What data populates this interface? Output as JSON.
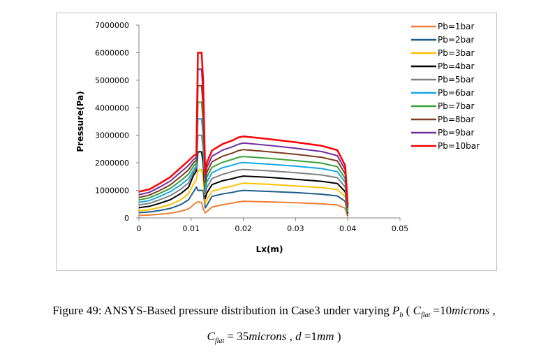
{
  "chart_data": {
    "type": "line",
    "title": "",
    "xlabel": "Lx(m)",
    "ylabel": "Pressure(Pa)",
    "xlim": [
      0,
      0.05
    ],
    "ylim": [
      0,
      7000000
    ],
    "xticks": [
      "0",
      "0.01",
      "0.02",
      "0.03",
      "0.04",
      "0.05"
    ],
    "yticks": [
      "0",
      "1000000",
      "2000000",
      "3000000",
      "4000000",
      "5000000",
      "6000000",
      "7000000"
    ],
    "legend_position": "right",
    "grid": false,
    "x": [
      0,
      0.002,
      0.004,
      0.006,
      0.008,
      0.0095,
      0.0105,
      0.011,
      0.0113,
      0.0117,
      0.012,
      0.0123,
      0.0127,
      0.013,
      0.014,
      0.016,
      0.018,
      0.019,
      0.02,
      0.025,
      0.03,
      0.035,
      0.038,
      0.0395,
      0.04
    ],
    "series": [
      {
        "name": "Pb=1bar",
        "color": "#ed7d31",
        "values": [
          90000,
          105000,
          135000,
          170000,
          240000,
          330000,
          480000,
          560000,
          580000,
          570000,
          560000,
          330000,
          180000,
          230000,
          390000,
          480000,
          540000,
          580000,
          600000,
          580000,
          550000,
          510000,
          470000,
          350000,
          40000
        ]
      },
      {
        "name": "Pb=2bar",
        "color": "#1f5c8b",
        "values": [
          190000,
          215000,
          270000,
          345000,
          480000,
          660000,
          960000,
          1120000,
          1000000,
          1000000,
          1000000,
          1000000,
          360000,
          450000,
          780000,
          870000,
          930000,
          975000,
          1000000,
          960000,
          920000,
          860000,
          800000,
          600000,
          80000
        ]
      },
      {
        "name": "Pb=3bar",
        "color": "#ffc000",
        "values": [
          260000,
          300000,
          380000,
          480000,
          660000,
          880000,
          1240000,
          1400000,
          1700000,
          1750000,
          1750000,
          1400000,
          510000,
          650000,
          960000,
          1080000,
          1160000,
          1220000,
          1260000,
          1220000,
          1160000,
          1100000,
          1030000,
          780000,
          120000
        ]
      },
      {
        "name": "Pb=4bar",
        "color": "#000000",
        "values": [
          370000,
          420000,
          530000,
          660000,
          880000,
          1110000,
          1560000,
          1700000,
          2400000,
          2400000,
          2400000,
          2000000,
          700000,
          900000,
          1210000,
          1350000,
          1430000,
          1480000,
          1520000,
          1470000,
          1400000,
          1330000,
          1250000,
          950000,
          160000
        ]
      },
      {
        "name": "Pb=5bar",
        "color": "#808080",
        "values": [
          470000,
          530000,
          660000,
          810000,
          1040000,
          1270000,
          1660000,
          1820000,
          3000000,
          3000000,
          3000000,
          2500000,
          850000,
          1100000,
          1430000,
          1580000,
          1690000,
          1740000,
          1760000,
          1710000,
          1640000,
          1560000,
          1460000,
          1120000,
          200000
        ]
      },
      {
        "name": "Pb=6bar",
        "color": "#17a7e6",
        "values": [
          560000,
          630000,
          780000,
          950000,
          1200000,
          1430000,
          1740000,
          1900000,
          3600000,
          3600000,
          3600000,
          3000000,
          1000000,
          1300000,
          1640000,
          1820000,
          1920000,
          1980000,
          2010000,
          1950000,
          1880000,
          1790000,
          1680000,
          1290000,
          250000
        ]
      },
      {
        "name": "Pb=7bar",
        "color": "#3aa23a",
        "values": [
          650000,
          730000,
          890000,
          1070000,
          1350000,
          1590000,
          1890000,
          2000000,
          4200000,
          4200000,
          4200000,
          3500000,
          1150000,
          1480000,
          1840000,
          2020000,
          2130000,
          2200000,
          2230000,
          2160000,
          2080000,
          1990000,
          1860000,
          1430000,
          300000
        ]
      },
      {
        "name": "Pb=8bar",
        "color": "#7b3b1e",
        "values": [
          740000,
          830000,
          1000000,
          1200000,
          1500000,
          1750000,
          2010000,
          2100000,
          4800000,
          4800000,
          4800000,
          4000000,
          1300000,
          1650000,
          2040000,
          2240000,
          2360000,
          2440000,
          2480000,
          2400000,
          2310000,
          2200000,
          2070000,
          1600000,
          350000
        ]
      },
      {
        "name": "Pb=9bar",
        "color": "#7030a0",
        "values": [
          840000,
          930000,
          1120000,
          1340000,
          1660000,
          1910000,
          2130000,
          2200000,
          5400000,
          5400000,
          5400000,
          4500000,
          1450000,
          1830000,
          2240000,
          2460000,
          2590000,
          2670000,
          2720000,
          2630000,
          2530000,
          2410000,
          2260000,
          1750000,
          400000
        ]
      },
      {
        "name": "Pb=10bar",
        "color": "#ff0000",
        "values": [
          950000,
          1040000,
          1250000,
          1480000,
          1820000,
          2080000,
          2260000,
          2310000,
          6000000,
          6000000,
          6000000,
          5000000,
          1600000,
          2000000,
          2450000,
          2680000,
          2820000,
          2920000,
          2960000,
          2860000,
          2750000,
          2620000,
          2460000,
          1900000,
          450000
        ]
      }
    ]
  },
  "caption": {
    "line1_text": "Figure 49: ANSYS-Based pressure distribution in Case3 under varying ",
    "line1_var": "P",
    "line1_var_sub": "b",
    "line1_open": " ( ",
    "line1_c": "C",
    "line1_c_sub": "flat",
    "line1_eq": " =10",
    "line1_unit": "microns",
    "line1_end": " ,",
    "line2_c": "C",
    "line2_c_sub": "flat",
    "line2_eq": " = 35",
    "line2_unit": "microns",
    "line2_sep": " , ",
    "line2_d": "d",
    "line2_deq": " =1",
    "line2_dunit": "mm",
    "line2_end": " )"
  }
}
